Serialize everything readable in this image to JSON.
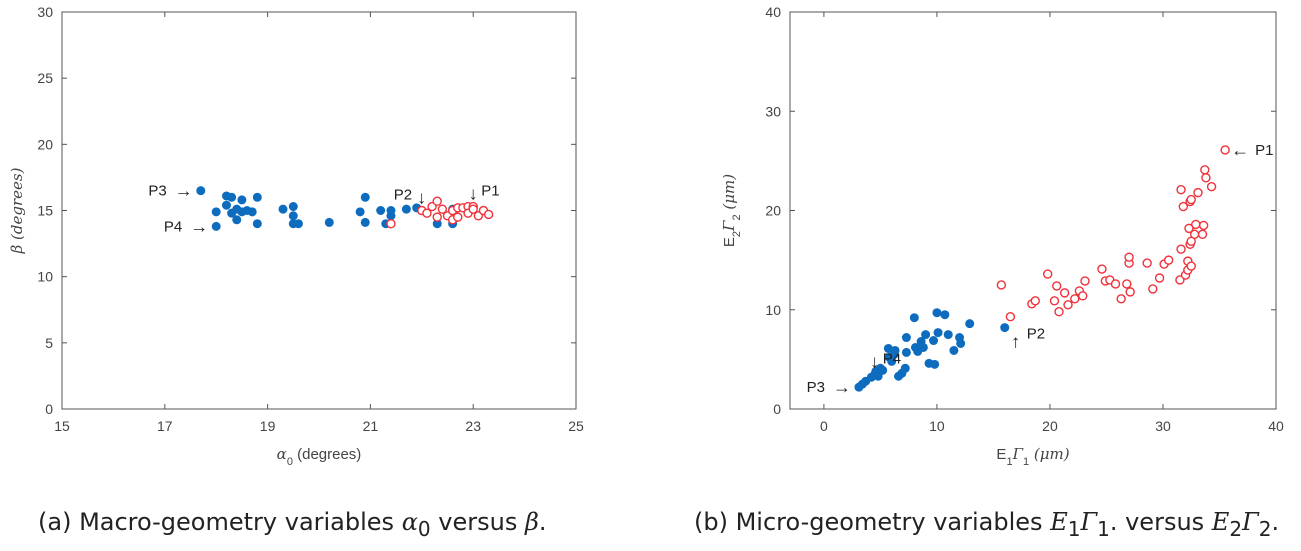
{
  "chart_data": [
    {
      "type": "scatter",
      "xlabel": "α0 (degrees)",
      "ylabel": "β (degrees)",
      "xlim": [
        15,
        25
      ],
      "ylim": [
        0,
        30
      ],
      "xticks": [
        15,
        17,
        19,
        21,
        23,
        25
      ],
      "yticks": [
        0,
        5,
        10,
        15,
        20,
        25,
        30
      ],
      "grid": false,
      "colors": {
        "filled": "#0e6cbf",
        "open": "#f0303a"
      },
      "series": [
        {
          "marker": "filled",
          "points": [
            [
              17.7,
              16.5
            ],
            [
              18.0,
              14.9
            ],
            [
              18.0,
              13.8
            ],
            [
              18.2,
              15.4
            ],
            [
              18.2,
              16.1
            ],
            [
              18.3,
              14.8
            ],
            [
              18.3,
              16.0
            ],
            [
              18.4,
              14.3
            ],
            [
              18.4,
              15.1
            ],
            [
              18.5,
              15.8
            ],
            [
              18.5,
              14.9
            ],
            [
              18.6,
              15.0
            ],
            [
              18.7,
              14.9
            ],
            [
              18.8,
              16.0
            ],
            [
              18.8,
              14.0
            ],
            [
              19.3,
              15.1
            ],
            [
              19.5,
              15.3
            ],
            [
              19.5,
              14.6
            ],
            [
              19.5,
              14.0
            ],
            [
              19.6,
              14.0
            ],
            [
              20.2,
              14.1
            ],
            [
              20.8,
              14.9
            ],
            [
              20.9,
              16.0
            ],
            [
              20.9,
              14.1
            ],
            [
              21.2,
              15.0
            ],
            [
              21.3,
              14.0
            ],
            [
              21.4,
              15.0
            ],
            [
              21.4,
              14.6
            ],
            [
              21.7,
              15.1
            ],
            [
              21.9,
              15.2
            ],
            [
              22.3,
              14.0
            ],
            [
              22.6,
              14.0
            ],
            [
              22.6,
              15.1
            ]
          ]
        },
        {
          "marker": "open",
          "points": [
            [
              21.4,
              14.0
            ],
            [
              22.0,
              15.0
            ],
            [
              22.1,
              14.8
            ],
            [
              22.2,
              15.3
            ],
            [
              22.3,
              15.7
            ],
            [
              22.3,
              14.5
            ],
            [
              22.4,
              15.1
            ],
            [
              22.5,
              14.6
            ],
            [
              22.6,
              14.3
            ],
            [
              22.6,
              15.0
            ],
            [
              22.7,
              14.5
            ],
            [
              22.7,
              15.2
            ],
            [
              22.8,
              15.2
            ],
            [
              22.9,
              15.3
            ],
            [
              22.9,
              14.8
            ],
            [
              23.0,
              15.3
            ],
            [
              23.0,
              15.1
            ],
            [
              23.1,
              14.6
            ],
            [
              23.2,
              15.0
            ],
            [
              23.3,
              14.7
            ]
          ]
        }
      ],
      "annotations": [
        {
          "text": "P1",
          "x": 23.0,
          "y": 15.3,
          "arrow": "down"
        },
        {
          "text": "P2",
          "x": 22.0,
          "y": 15.0,
          "arrow": "down"
        },
        {
          "text": "P3",
          "x": 17.7,
          "y": 16.5,
          "arrow": "right"
        },
        {
          "text": "P4",
          "x": 18.0,
          "y": 13.8,
          "arrow": "right"
        }
      ]
    },
    {
      "type": "scatter",
      "xlabel": "E1Γ1 (μm)",
      "ylabel": "E2Γ2 (μm)",
      "xlim": [
        -3,
        40
      ],
      "ylim": [
        0,
        40
      ],
      "xticks": [
        0,
        10,
        20,
        30,
        40
      ],
      "yticks": [
        0,
        10,
        20,
        30,
        40
      ],
      "grid": false,
      "colors": {
        "filled": "#0e6cbf",
        "open": "#f0303a"
      },
      "series": [
        {
          "marker": "filled",
          "points": [
            [
              3.1,
              2.2
            ],
            [
              3.4,
              2.5
            ],
            [
              3.7,
              2.8
            ],
            [
              4.2,
              3.2
            ],
            [
              4.5,
              3.5
            ],
            [
              4.6,
              3.8
            ],
            [
              4.8,
              3.3
            ],
            [
              5.0,
              4.1
            ],
            [
              5.2,
              3.9
            ],
            [
              5.7,
              6.1
            ],
            [
              5.8,
              5.2
            ],
            [
              6.0,
              4.8
            ],
            [
              6.2,
              5.5
            ],
            [
              6.3,
              5.9
            ],
            [
              6.6,
              3.3
            ],
            [
              6.9,
              3.6
            ],
            [
              7.2,
              4.1
            ],
            [
              7.3,
              5.7
            ],
            [
              7.3,
              7.2
            ],
            [
              8.0,
              9.2
            ],
            [
              8.1,
              6.2
            ],
            [
              8.3,
              5.8
            ],
            [
              8.6,
              6.8
            ],
            [
              8.8,
              6.2
            ],
            [
              9.0,
              7.5
            ],
            [
              9.3,
              4.6
            ],
            [
              9.7,
              6.9
            ],
            [
              9.8,
              4.5
            ],
            [
              10.0,
              9.7
            ],
            [
              10.1,
              7.7
            ],
            [
              10.7,
              9.5
            ],
            [
              11.0,
              7.5
            ],
            [
              11.5,
              5.9
            ],
            [
              12.0,
              7.2
            ],
            [
              12.1,
              6.6
            ],
            [
              12.9,
              8.6
            ],
            [
              16.0,
              8.2
            ]
          ]
        },
        {
          "marker": "open",
          "points": [
            [
              15.7,
              12.5
            ],
            [
              16.5,
              9.3
            ],
            [
              18.4,
              10.6
            ],
            [
              18.7,
              10.9
            ],
            [
              19.8,
              13.6
            ],
            [
              20.4,
              10.9
            ],
            [
              20.6,
              12.4
            ],
            [
              20.8,
              9.8
            ],
            [
              21.3,
              11.7
            ],
            [
              21.6,
              10.5
            ],
            [
              22.2,
              11.1
            ],
            [
              22.6,
              11.9
            ],
            [
              22.9,
              11.4
            ],
            [
              23.1,
              12.9
            ],
            [
              24.6,
              14.1
            ],
            [
              24.9,
              12.9
            ],
            [
              25.3,
              13.0
            ],
            [
              25.8,
              12.6
            ],
            [
              26.3,
              11.1
            ],
            [
              26.8,
              12.6
            ],
            [
              27.0,
              14.7
            ],
            [
              27.0,
              15.3
            ],
            [
              27.1,
              11.8
            ],
            [
              28.6,
              14.7
            ],
            [
              29.1,
              12.1
            ],
            [
              29.7,
              13.2
            ],
            [
              30.1,
              14.6
            ],
            [
              30.5,
              15.0
            ],
            [
              31.5,
              13.0
            ],
            [
              31.6,
              16.1
            ],
            [
              31.6,
              22.1
            ],
            [
              31.8,
              20.4
            ],
            [
              32.0,
              13.5
            ],
            [
              32.2,
              14.0
            ],
            [
              32.2,
              14.9
            ],
            [
              32.3,
              18.2
            ],
            [
              32.4,
              16.6
            ],
            [
              32.4,
              20.9
            ],
            [
              32.5,
              21.1
            ],
            [
              32.5,
              14.4
            ],
            [
              32.5,
              16.9
            ],
            [
              32.8,
              17.6
            ],
            [
              32.9,
              18.6
            ],
            [
              33.1,
              21.8
            ],
            [
              33.5,
              17.6
            ],
            [
              33.6,
              18.5
            ],
            [
              33.7,
              24.1
            ],
            [
              33.8,
              23.3
            ],
            [
              34.3,
              22.4
            ],
            [
              35.5,
              26.1
            ]
          ]
        }
      ],
      "annotations": [
        {
          "text": "P1",
          "x": 35.5,
          "y": 26.1,
          "arrow": "left"
        },
        {
          "text": "P2",
          "x": 16.0,
          "y": 8.2,
          "arrow": "up"
        },
        {
          "text": "P3",
          "x": 3.1,
          "y": 2.2,
          "arrow": "right"
        },
        {
          "text": "P4",
          "x": 4.5,
          "y": 3.5,
          "arrow": "down"
        }
      ]
    }
  ],
  "captions": {
    "a_prefix": "(a) Macro-geometry variables ",
    "a_alpha": "α",
    "a_alpha_sub": "0",
    "a_mid": " versus ",
    "a_beta": "β",
    "a_end": ".",
    "b_prefix": "(b) Micro-geometry variables ",
    "b_e1": "E",
    "b_e1_sub": "1",
    "b_g1": "Γ",
    "b_g1_sub": "1",
    "b_mid": ". versus ",
    "b_e2": "E",
    "b_e2_sub": "2",
    "b_g2": "Γ",
    "b_g2_sub": "2",
    "b_end": "."
  }
}
